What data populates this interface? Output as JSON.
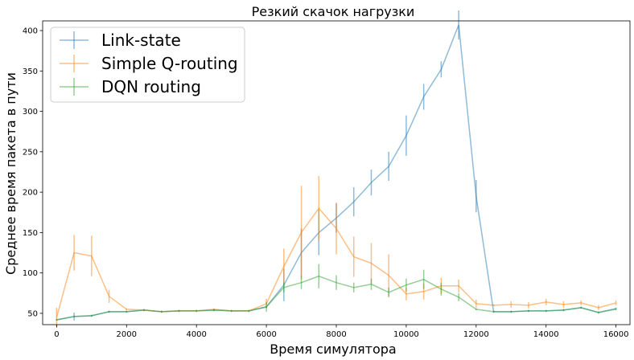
{
  "chart_data": {
    "type": "line",
    "title": "Резкий скачок нагрузки",
    "xlabel": "Время симулятора",
    "ylabel": "Среднее время пакета в пути",
    "xlim": [
      -400,
      16400
    ],
    "ylim": [
      36,
      412
    ],
    "xticks": [
      0,
      2000,
      4000,
      6000,
      8000,
      10000,
      12000,
      14000,
      16000
    ],
    "yticks": [
      50,
      100,
      150,
      200,
      250,
      300,
      350,
      400
    ],
    "grid": false,
    "legend_position": "top-left",
    "series": [
      {
        "name": "Link-state",
        "color": "#1f77b4",
        "points": [
          [
            0,
            42,
            0
          ],
          [
            500,
            46,
            5
          ],
          [
            1000,
            47,
            0
          ],
          [
            1500,
            52,
            0
          ],
          [
            2000,
            52,
            0
          ],
          [
            2500,
            54,
            0
          ],
          [
            3000,
            52,
            0
          ],
          [
            3500,
            53,
            0
          ],
          [
            4000,
            53,
            0
          ],
          [
            4500,
            54,
            0
          ],
          [
            5000,
            53,
            0
          ],
          [
            5500,
            53,
            0
          ],
          [
            6000,
            58,
            0
          ],
          [
            6500,
            85,
            20
          ],
          [
            7000,
            125,
            30
          ],
          [
            7500,
            150,
            28
          ],
          [
            8000,
            168,
            18
          ],
          [
            8500,
            188,
            18
          ],
          [
            9000,
            212,
            16
          ],
          [
            9500,
            232,
            18
          ],
          [
            10000,
            270,
            25
          ],
          [
            10500,
            318,
            16
          ],
          [
            11000,
            352,
            10
          ],
          [
            11500,
            407,
            18
          ],
          [
            12000,
            195,
            20
          ],
          [
            12500,
            52,
            0
          ],
          [
            13000,
            52,
            0
          ],
          [
            13500,
            53,
            0
          ],
          [
            14000,
            53,
            0
          ],
          [
            14500,
            54,
            0
          ],
          [
            15000,
            57,
            0
          ],
          [
            15500,
            51,
            0
          ],
          [
            16000,
            56,
            0
          ]
        ]
      },
      {
        "name": "Simple Q-routing",
        "color": "#ff7f0e",
        "points": [
          [
            0,
            45,
            12
          ],
          [
            500,
            125,
            22
          ],
          [
            1000,
            121,
            25
          ],
          [
            1500,
            71,
            8
          ],
          [
            2000,
            55,
            0
          ],
          [
            2500,
            54,
            0
          ],
          [
            3000,
            52,
            0
          ],
          [
            3500,
            53,
            0
          ],
          [
            4000,
            53,
            0
          ],
          [
            4500,
            55,
            0
          ],
          [
            5000,
            53,
            0
          ],
          [
            5500,
            53,
            0
          ],
          [
            6000,
            62,
            6
          ],
          [
            6500,
            108,
            22
          ],
          [
            7000,
            150,
            58
          ],
          [
            7500,
            180,
            40
          ],
          [
            8000,
            155,
            32
          ],
          [
            8500,
            120,
            25
          ],
          [
            9000,
            112,
            25
          ],
          [
            9500,
            97,
            26
          ],
          [
            10000,
            74,
            8
          ],
          [
            10500,
            77,
            10
          ],
          [
            11000,
            84,
            10
          ],
          [
            11500,
            84,
            8
          ],
          [
            12000,
            62,
            5
          ],
          [
            12500,
            60,
            0
          ],
          [
            13000,
            61,
            4
          ],
          [
            13500,
            60,
            4
          ],
          [
            14000,
            64,
            4
          ],
          [
            14500,
            61,
            4
          ],
          [
            15000,
            63,
            3
          ],
          [
            15500,
            57,
            3
          ],
          [
            16000,
            63,
            3
          ]
        ]
      },
      {
        "name": "DQN routing",
        "color": "#2ca02c",
        "points": [
          [
            0,
            42,
            0
          ],
          [
            500,
            46,
            0
          ],
          [
            1000,
            47,
            0
          ],
          [
            1500,
            52,
            0
          ],
          [
            2000,
            52,
            0
          ],
          [
            2500,
            54,
            0
          ],
          [
            3000,
            52,
            0
          ],
          [
            3500,
            53,
            0
          ],
          [
            4000,
            53,
            0
          ],
          [
            4500,
            54,
            0
          ],
          [
            5000,
            53,
            0
          ],
          [
            5500,
            53,
            0
          ],
          [
            6000,
            58,
            6
          ],
          [
            6500,
            82,
            6
          ],
          [
            7000,
            88,
            8
          ],
          [
            7500,
            96,
            15
          ],
          [
            8000,
            88,
            9
          ],
          [
            8500,
            82,
            6
          ],
          [
            9000,
            86,
            7
          ],
          [
            9500,
            76,
            6
          ],
          [
            10000,
            85,
            8
          ],
          [
            10500,
            92,
            12
          ],
          [
            11000,
            80,
            8
          ],
          [
            11500,
            70,
            5
          ],
          [
            12000,
            55,
            0
          ],
          [
            12500,
            52,
            0
          ],
          [
            13000,
            52,
            0
          ],
          [
            13500,
            53,
            0
          ],
          [
            14000,
            53,
            0
          ],
          [
            14500,
            54,
            0
          ],
          [
            15000,
            57,
            0
          ],
          [
            15500,
            51,
            0
          ],
          [
            16000,
            55,
            0
          ]
        ]
      }
    ]
  }
}
